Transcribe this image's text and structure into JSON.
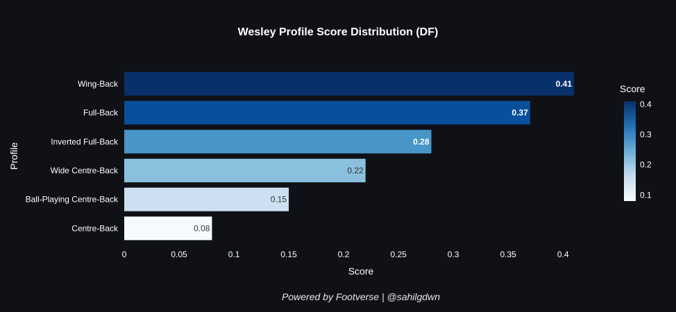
{
  "chart_data": {
    "type": "bar",
    "orientation": "horizontal",
    "title": "Wesley Profile Score Distribution (DF)",
    "xlabel": "Score",
    "ylabel": "Profile",
    "categories": [
      "Wing-Back",
      "Full-Back",
      "Inverted Full-Back",
      "Wide Centre-Back",
      "Ball-Playing Centre-Back",
      "Centre-Back"
    ],
    "values": [
      0.41,
      0.37,
      0.28,
      0.22,
      0.15,
      0.08
    ],
    "value_labels": [
      "0.41",
      "0.37",
      "0.28",
      "0.22",
      "0.15",
      "0.08"
    ],
    "xlim": [
      0,
      0.41
    ],
    "xticks": [
      0,
      0.05,
      0.1,
      0.15,
      0.2,
      0.25,
      0.3,
      0.35,
      0.4
    ],
    "xtick_labels": [
      "0",
      "0.05",
      "0.1",
      "0.15",
      "0.2",
      "0.25",
      "0.3",
      "0.35",
      "0.4"
    ],
    "grid": false,
    "colorscale": "Blues",
    "colorbar": {
      "title": "Score",
      "range": [
        0.08,
        0.41
      ],
      "ticks": [
        0.1,
        0.2,
        0.3,
        0.4
      ],
      "tick_labels": [
        "0.1",
        "0.2",
        "0.3",
        "0.4"
      ]
    },
    "colors": {
      "background": "#0f1117",
      "scale_low": "#f7fbff",
      "scale_high": "#08306b"
    }
  },
  "footer": "Powered by Footverse | @sahilgdwn"
}
